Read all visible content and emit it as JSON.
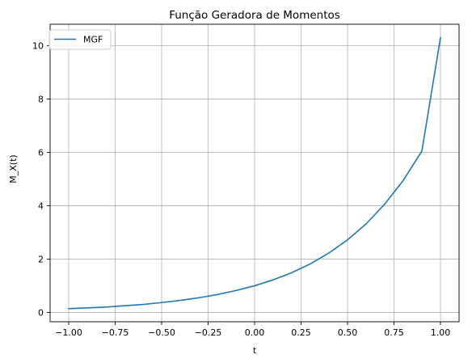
{
  "chart_data": {
    "type": "line",
    "title": "Função Geradora de Momentos",
    "xlabel": "t",
    "ylabel": "M_X(t)",
    "xlim": [
      -1.1,
      1.1
    ],
    "ylim": [
      -0.35,
      10.8
    ],
    "xticks": [
      -1.0,
      -0.75,
      -0.5,
      -0.25,
      0.0,
      0.25,
      0.5,
      0.75,
      1.0
    ],
    "xtick_labels": [
      "−1.00",
      "−0.75",
      "−0.50",
      "−0.25",
      "0.00",
      "0.25",
      "0.50",
      "0.75",
      "1.00"
    ],
    "yticks": [
      0,
      2,
      4,
      6,
      8,
      10
    ],
    "ytick_labels": [
      "0",
      "2",
      "4",
      "6",
      "8",
      "10"
    ],
    "grid": true,
    "legend_position": "top-left",
    "series": [
      {
        "name": "MGF",
        "color": "#1f77b4",
        "x": [
          -1.0,
          -0.9,
          -0.8,
          -0.7,
          -0.6,
          -0.5,
          -0.4,
          -0.3,
          -0.2,
          -0.1,
          0.0,
          0.1,
          0.2,
          0.3,
          0.4,
          0.5,
          0.6,
          0.7,
          0.8,
          0.9,
          1.0
        ],
        "y": [
          0.14,
          0.17,
          0.2,
          0.25,
          0.3,
          0.37,
          0.45,
          0.55,
          0.67,
          0.82,
          1.0,
          1.22,
          1.49,
          1.82,
          2.23,
          2.72,
          3.32,
          4.06,
          4.95,
          6.05,
          10.3
        ]
      }
    ]
  }
}
